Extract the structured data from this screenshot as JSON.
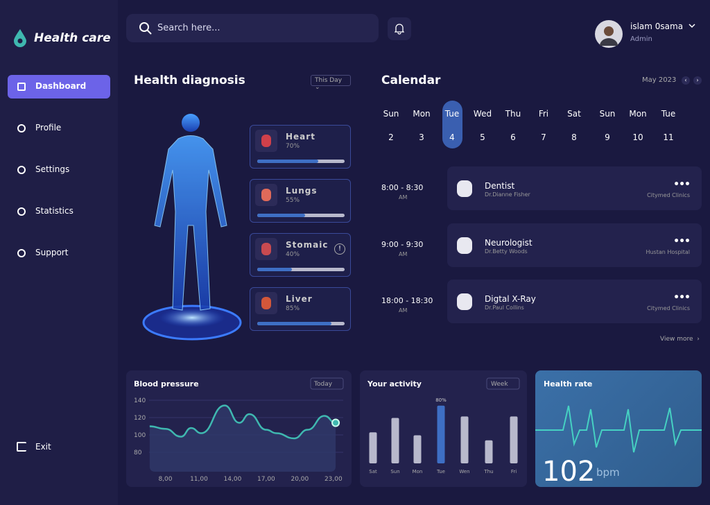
{
  "brand": "Health care",
  "nav": [
    "Dashboard",
    "Profile",
    "Settings",
    "Statistics",
    "Support"
  ],
  "exit": "Exit",
  "search_placeholder": "Search here...",
  "user": {
    "name": "islam 0sama",
    "role": "Admin"
  },
  "diagnosis": {
    "title": "Health diagnosis",
    "filter": "This Day",
    "organs": [
      {
        "name": "Heart",
        "value": 70,
        "label": "70%"
      },
      {
        "name": "Lungs",
        "value": 55,
        "label": "55%"
      },
      {
        "name": "Stomaic",
        "value": 40,
        "label": "40%"
      },
      {
        "name": "Liver",
        "value": 85,
        "label": "85%"
      }
    ]
  },
  "calendar": {
    "title": "Calendar",
    "month": "May 2023",
    "selected": 2,
    "days": [
      {
        "day": "Sun",
        "date": 2
      },
      {
        "day": "Mon",
        "date": 3
      },
      {
        "day": "Tue",
        "date": 4
      },
      {
        "day": "Wed",
        "date": 5
      },
      {
        "day": "Thu",
        "date": 6
      },
      {
        "day": "Fri",
        "date": 7
      },
      {
        "day": "Sat",
        "date": 8
      },
      {
        "day": "Sun",
        "date": 9
      },
      {
        "day": "Mon",
        "date": 10
      },
      {
        "day": "Tue",
        "date": 11
      }
    ],
    "appointments": [
      {
        "time": "8:00 - 8:30",
        "period": "AM",
        "title": "Dentist",
        "doctor": "Dr.Dianne Fisher",
        "place": "Citymed Clinics"
      },
      {
        "time": "9:00 - 9:30",
        "period": "AM",
        "title": "Neurologist",
        "doctor": "Dr.Betty Woods",
        "place": "Hustan Hospital"
      },
      {
        "time": "18:00 - 18:30",
        "period": "AM",
        "title": "Digtal X-Ray",
        "doctor": "Dr.Paul Collins",
        "place": "Citymed Clinics"
      }
    ],
    "view_more": "View more"
  },
  "blood_pressure": {
    "type": "line",
    "title": "Blood pressure",
    "filter": "Today",
    "x": [
      6.6,
      8,
      9.4,
      10.3,
      11.2,
      13.3,
      14.6,
      15.5,
      17,
      17.9,
      19.5,
      20.7,
      22.2,
      23.2
    ],
    "values": [
      110,
      107,
      98,
      108,
      102,
      134,
      114,
      124,
      106,
      102,
      96,
      106,
      122,
      114
    ],
    "color": "#3fb8b0",
    "xlim": [
      5,
      24
    ],
    "xticks": [
      {
        "value": 8,
        "label": "8,00"
      },
      {
        "value": 11,
        "label": "11,00"
      },
      {
        "value": 14,
        "label": "14,00"
      },
      {
        "value": 17,
        "label": "17,00"
      },
      {
        "value": 20,
        "label": "20,00"
      },
      {
        "value": 23,
        "label": "23,00"
      }
    ],
    "ylim": [
      70,
      145
    ],
    "yticks": [
      80,
      100,
      120,
      140
    ],
    "grid": true
  },
  "activity": {
    "type": "bar",
    "title": "Your activity",
    "filter": "Week",
    "categories": [
      "Sat",
      "Sun",
      "Mon",
      "Tue",
      "Wen",
      "Thu",
      "Fri"
    ],
    "values": [
      43,
      63,
      39,
      80,
      65,
      32,
      65
    ],
    "value_labels": [
      null,
      null,
      null,
      "80%",
      null,
      null,
      null
    ],
    "color": "#b8b9cc",
    "highlight_color": "#3e6fc4",
    "highlight": 3,
    "ylim": [
      0,
      100
    ]
  },
  "health_rate": {
    "title": "Health rate",
    "value": 102,
    "unit": "bpm"
  }
}
